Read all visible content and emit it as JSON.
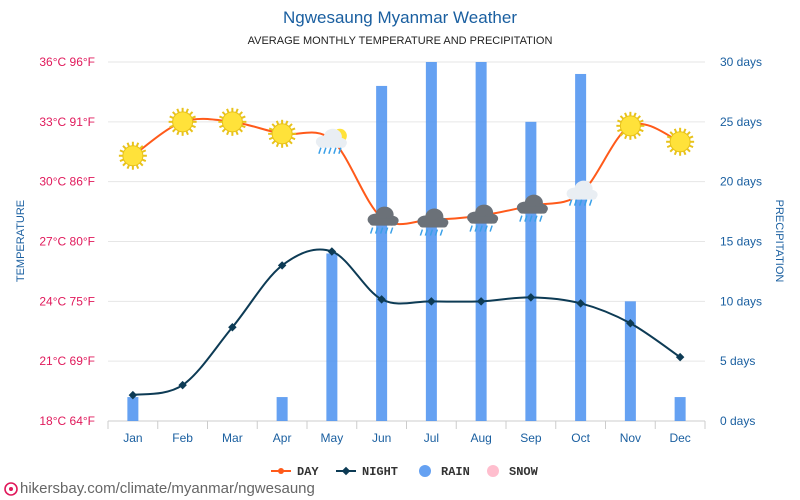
{
  "chart_data": {
    "type": "line",
    "title": "Ngwesaung Myanmar Weather",
    "subtitle": "AVERAGE MONTHLY TEMPERATURE AND PRECIPITATION",
    "categories": [
      "Jan",
      "Feb",
      "Mar",
      "Apr",
      "May",
      "Jun",
      "Jul",
      "Aug",
      "Sep",
      "Oct",
      "Nov",
      "Dec"
    ],
    "ylabel_left": "TEMPERATURE",
    "ylabel_right": "PRECIPITATION",
    "left_axis": {
      "ylim": [
        18,
        36
      ],
      "ticks": [
        "18°C 64°F",
        "21°C 69°F",
        "24°C 75°F",
        "27°C 80°F",
        "30°C 86°F",
        "33°C 91°F",
        "36°C 96°F"
      ]
    },
    "right_axis": {
      "ylim": [
        0,
        30
      ],
      "ticks": [
        "0 days",
        "5 days",
        "10 days",
        "15 days",
        "20 days",
        "25 days",
        "30 days"
      ]
    },
    "series": [
      {
        "name": "DAY",
        "axis": "left",
        "color": "#ff5a1a",
        "values": [
          31.3,
          33.0,
          33.0,
          32.4,
          32.1,
          28.2,
          28.1,
          28.3,
          28.8,
          29.4,
          32.8,
          32.0
        ]
      },
      {
        "name": "NIGHT",
        "axis": "left",
        "color": "#0d3b55",
        "values": [
          19.3,
          19.8,
          22.7,
          25.8,
          26.5,
          24.1,
          24.0,
          24.0,
          24.2,
          23.9,
          22.9,
          21.2
        ]
      },
      {
        "name": "RAIN",
        "axis": "right",
        "color": "#4a90f0",
        "type": "bar",
        "values": [
          2,
          0,
          0,
          2,
          14,
          28,
          30,
          30,
          25,
          29,
          10,
          2
        ]
      },
      {
        "name": "SNOW",
        "axis": "right",
        "color": "#ffb3c6",
        "type": "bar",
        "values": [
          0,
          0,
          0,
          0,
          0,
          0,
          0,
          0,
          0,
          0,
          0,
          0
        ]
      }
    ],
    "weather_icons": [
      "sun",
      "sun",
      "sun",
      "sun",
      "sun-cloud-rain",
      "cloud-rain",
      "cloud-rain",
      "cloud-rain",
      "cloud-rain",
      "cloud-light-rain",
      "sun",
      "sun"
    ],
    "legend": [
      "DAY",
      "NIGHT",
      "RAIN",
      "SNOW"
    ],
    "legend_position": "bottom",
    "grid": true,
    "colors": {
      "left_axis_text": "#e0195b",
      "right_axis_text": "#1a5fa0",
      "title": "#1a5fa0"
    }
  },
  "credit": "hikersbay.com/climate/myanmar/ngwesaung"
}
